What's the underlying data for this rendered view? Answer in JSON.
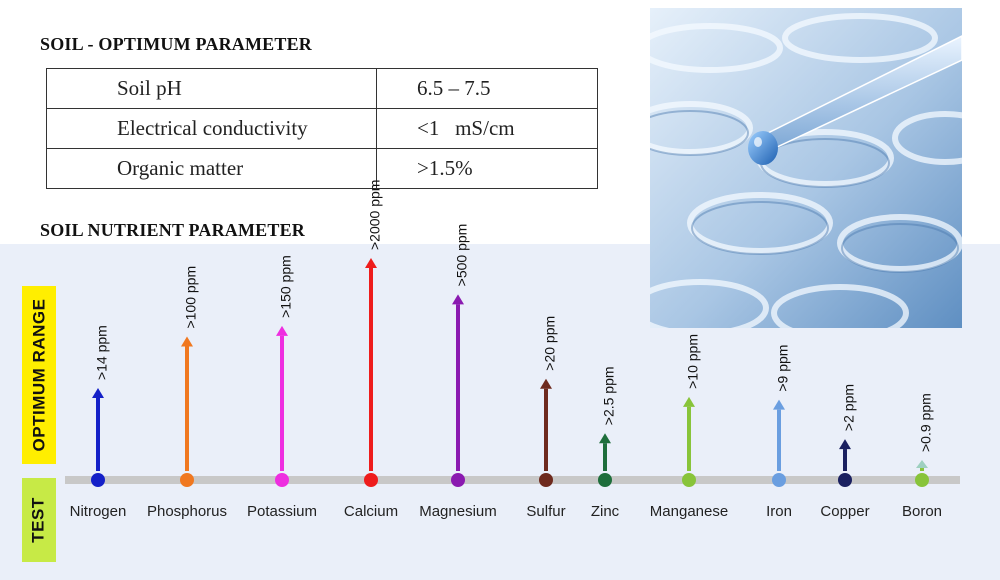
{
  "optimum": {
    "title": "SOIL - OPTIMUM PARAMETER",
    "rows": [
      {
        "label": "Soil pH",
        "value": "6.5 – 7.5"
      },
      {
        "label": "Electrical conductivity",
        "value": "<1   mS/cm"
      },
      {
        "label": "Organic matter",
        "value": ">1.5%"
      }
    ]
  },
  "nutrient_title": "SOIL NUTRIENT PARAMETER",
  "side_labels": {
    "optimum_range": "OPTIMUM RANGE",
    "test": "TEST"
  },
  "photo": {
    "icon": "lab-pipette-test-tubes-photo",
    "tint": "#a9c6e4"
  },
  "chart_data": {
    "type": "bar",
    "categories": [
      "Nitrogen",
      "Phosphorus",
      "Potassium",
      "Calcium",
      "Magnesium",
      "Sulfur",
      "Zinc",
      "Manganese",
      "Iron",
      "Copper",
      "Boron"
    ],
    "values": [
      14,
      100,
      150,
      2000,
      500,
      20,
      2.5,
      10,
      9,
      2,
      0.9
    ],
    "value_labels": [
      ">14 ppm",
      ">100 ppm",
      ">150 ppm",
      ">2000 ppm",
      ">500 ppm",
      ">20 ppm",
      ">2.5 ppm",
      ">10 ppm",
      ">9 ppm",
      ">2 ppm",
      ">0.9 ppm"
    ],
    "colors": [
      "#1420c8",
      "#f07820",
      "#ee2ee0",
      "#ee1c1c",
      "#8a1ab0",
      "#6e2a1e",
      "#1e6e3c",
      "#88c43a",
      "#6a9ee0",
      "#1a2060",
      "#88c43a"
    ],
    "arrow_colors": [
      "#1420c8",
      "#f07820",
      "#ee2ee0",
      "#ee1c1c",
      "#8a1ab0",
      "#6e2a1e",
      "#1e6e3c",
      "#88c43a",
      "#6a9ee0",
      "#1a2060",
      "#9ed0c0"
    ],
    "unit": "ppm",
    "scale": "nonlinear",
    "baseline_color": "#c8c8c8",
    "grid": false,
    "legend": "none"
  }
}
